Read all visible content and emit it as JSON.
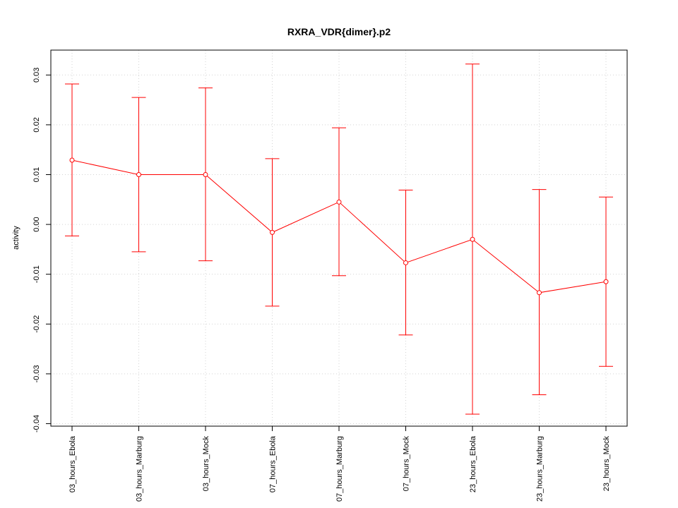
{
  "chart_data": {
    "type": "line",
    "title": "RXRA_VDR{dimer}.p2",
    "xlabel": "",
    "ylabel": "activity",
    "categories": [
      "03_hours_Ebola",
      "03_hours_Marburg",
      "03_hours_Mock",
      "07_hours_Ebola",
      "07_hours_Marburg",
      "07_hours_Mock",
      "23_hours_Ebola",
      "23_hours_Marburg",
      "23_hours_Mock"
    ],
    "values": [
      0.0129,
      0.01,
      0.01,
      -0.0016,
      0.0045,
      -0.0077,
      -0.003,
      -0.0137,
      -0.0115
    ],
    "err_upper": [
      0.0282,
      0.0255,
      0.0274,
      0.0132,
      0.0194,
      0.0069,
      0.0322,
      0.007,
      0.0055
    ],
    "err_lower": [
      -0.0023,
      -0.0055,
      -0.0073,
      -0.0164,
      -0.0103,
      -0.0222,
      -0.0381,
      -0.0342,
      -0.0285
    ],
    "ylim": [
      -0.0405,
      0.035
    ],
    "yticks": [
      -0.04,
      -0.03,
      -0.02,
      -0.01,
      0.0,
      0.01,
      0.02,
      0.03
    ],
    "ytick_labels": [
      "-0.04",
      "-0.03",
      "-0.02",
      "-0.01",
      "0.00",
      "0.01",
      "0.02",
      "0.03"
    ],
    "grid": true,
    "color": "#ff0000"
  }
}
